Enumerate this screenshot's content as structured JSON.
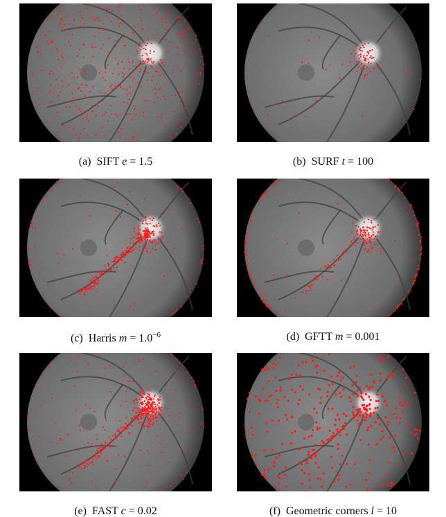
{
  "figure": {
    "panels": [
      {
        "label": "(a)",
        "method": "SIFT",
        "var": "e",
        "value": "= 1.5"
      },
      {
        "label": "(b)",
        "method": "SURF",
        "var": "t",
        "value": "= 100"
      },
      {
        "label": "(c)",
        "method": "Harris",
        "var": "m",
        "value": "= 1.0",
        "sup": "−6"
      },
      {
        "label": "(d)",
        "method": "GFTT",
        "var": "m",
        "value": "= 0.001"
      },
      {
        "label": "(e)",
        "method": "FAST",
        "var": "c",
        "value": "= 0.02"
      },
      {
        "label": "(f)",
        "method": "Geometric corners",
        "var": "l",
        "value": "= 10"
      }
    ]
  }
}
